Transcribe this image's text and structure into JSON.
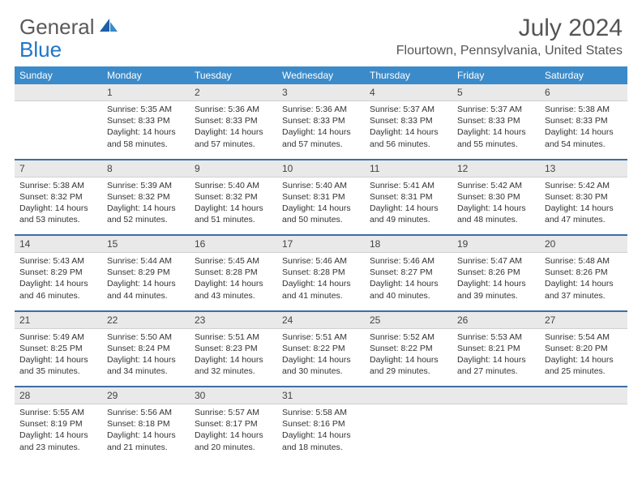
{
  "brand": {
    "part1": "General",
    "part2": "Blue"
  },
  "title": "July 2024",
  "location": "Flourtown, Pennsylvania, United States",
  "colors": {
    "header_bg": "#3b8bca",
    "header_text": "#ffffff",
    "daynum_bg": "#e9e9e9",
    "row_divider": "#3b6fa5",
    "logo_blue": "#2176c7",
    "logo_gray": "#5a5a5a"
  },
  "day_names": [
    "Sunday",
    "Monday",
    "Tuesday",
    "Wednesday",
    "Thursday",
    "Friday",
    "Saturday"
  ],
  "weeks": [
    {
      "nums": [
        "",
        "1",
        "2",
        "3",
        "4",
        "5",
        "6"
      ],
      "cells": [
        null,
        {
          "sr": "Sunrise: 5:35 AM",
          "ss": "Sunset: 8:33 PM",
          "dl": "Daylight: 14 hours and 58 minutes."
        },
        {
          "sr": "Sunrise: 5:36 AM",
          "ss": "Sunset: 8:33 PM",
          "dl": "Daylight: 14 hours and 57 minutes."
        },
        {
          "sr": "Sunrise: 5:36 AM",
          "ss": "Sunset: 8:33 PM",
          "dl": "Daylight: 14 hours and 57 minutes."
        },
        {
          "sr": "Sunrise: 5:37 AM",
          "ss": "Sunset: 8:33 PM",
          "dl": "Daylight: 14 hours and 56 minutes."
        },
        {
          "sr": "Sunrise: 5:37 AM",
          "ss": "Sunset: 8:33 PM",
          "dl": "Daylight: 14 hours and 55 minutes."
        },
        {
          "sr": "Sunrise: 5:38 AM",
          "ss": "Sunset: 8:33 PM",
          "dl": "Daylight: 14 hours and 54 minutes."
        }
      ]
    },
    {
      "nums": [
        "7",
        "8",
        "9",
        "10",
        "11",
        "12",
        "13"
      ],
      "cells": [
        {
          "sr": "Sunrise: 5:38 AM",
          "ss": "Sunset: 8:32 PM",
          "dl": "Daylight: 14 hours and 53 minutes."
        },
        {
          "sr": "Sunrise: 5:39 AM",
          "ss": "Sunset: 8:32 PM",
          "dl": "Daylight: 14 hours and 52 minutes."
        },
        {
          "sr": "Sunrise: 5:40 AM",
          "ss": "Sunset: 8:32 PM",
          "dl": "Daylight: 14 hours and 51 minutes."
        },
        {
          "sr": "Sunrise: 5:40 AM",
          "ss": "Sunset: 8:31 PM",
          "dl": "Daylight: 14 hours and 50 minutes."
        },
        {
          "sr": "Sunrise: 5:41 AM",
          "ss": "Sunset: 8:31 PM",
          "dl": "Daylight: 14 hours and 49 minutes."
        },
        {
          "sr": "Sunrise: 5:42 AM",
          "ss": "Sunset: 8:30 PM",
          "dl": "Daylight: 14 hours and 48 minutes."
        },
        {
          "sr": "Sunrise: 5:42 AM",
          "ss": "Sunset: 8:30 PM",
          "dl": "Daylight: 14 hours and 47 minutes."
        }
      ]
    },
    {
      "nums": [
        "14",
        "15",
        "16",
        "17",
        "18",
        "19",
        "20"
      ],
      "cells": [
        {
          "sr": "Sunrise: 5:43 AM",
          "ss": "Sunset: 8:29 PM",
          "dl": "Daylight: 14 hours and 46 minutes."
        },
        {
          "sr": "Sunrise: 5:44 AM",
          "ss": "Sunset: 8:29 PM",
          "dl": "Daylight: 14 hours and 44 minutes."
        },
        {
          "sr": "Sunrise: 5:45 AM",
          "ss": "Sunset: 8:28 PM",
          "dl": "Daylight: 14 hours and 43 minutes."
        },
        {
          "sr": "Sunrise: 5:46 AM",
          "ss": "Sunset: 8:28 PM",
          "dl": "Daylight: 14 hours and 41 minutes."
        },
        {
          "sr": "Sunrise: 5:46 AM",
          "ss": "Sunset: 8:27 PM",
          "dl": "Daylight: 14 hours and 40 minutes."
        },
        {
          "sr": "Sunrise: 5:47 AM",
          "ss": "Sunset: 8:26 PM",
          "dl": "Daylight: 14 hours and 39 minutes."
        },
        {
          "sr": "Sunrise: 5:48 AM",
          "ss": "Sunset: 8:26 PM",
          "dl": "Daylight: 14 hours and 37 minutes."
        }
      ]
    },
    {
      "nums": [
        "21",
        "22",
        "23",
        "24",
        "25",
        "26",
        "27"
      ],
      "cells": [
        {
          "sr": "Sunrise: 5:49 AM",
          "ss": "Sunset: 8:25 PM",
          "dl": "Daylight: 14 hours and 35 minutes."
        },
        {
          "sr": "Sunrise: 5:50 AM",
          "ss": "Sunset: 8:24 PM",
          "dl": "Daylight: 14 hours and 34 minutes."
        },
        {
          "sr": "Sunrise: 5:51 AM",
          "ss": "Sunset: 8:23 PM",
          "dl": "Daylight: 14 hours and 32 minutes."
        },
        {
          "sr": "Sunrise: 5:51 AM",
          "ss": "Sunset: 8:22 PM",
          "dl": "Daylight: 14 hours and 30 minutes."
        },
        {
          "sr": "Sunrise: 5:52 AM",
          "ss": "Sunset: 8:22 PM",
          "dl": "Daylight: 14 hours and 29 minutes."
        },
        {
          "sr": "Sunrise: 5:53 AM",
          "ss": "Sunset: 8:21 PM",
          "dl": "Daylight: 14 hours and 27 minutes."
        },
        {
          "sr": "Sunrise: 5:54 AM",
          "ss": "Sunset: 8:20 PM",
          "dl": "Daylight: 14 hours and 25 minutes."
        }
      ]
    },
    {
      "nums": [
        "28",
        "29",
        "30",
        "31",
        "",
        "",
        ""
      ],
      "cells": [
        {
          "sr": "Sunrise: 5:55 AM",
          "ss": "Sunset: 8:19 PM",
          "dl": "Daylight: 14 hours and 23 minutes."
        },
        {
          "sr": "Sunrise: 5:56 AM",
          "ss": "Sunset: 8:18 PM",
          "dl": "Daylight: 14 hours and 21 minutes."
        },
        {
          "sr": "Sunrise: 5:57 AM",
          "ss": "Sunset: 8:17 PM",
          "dl": "Daylight: 14 hours and 20 minutes."
        },
        {
          "sr": "Sunrise: 5:58 AM",
          "ss": "Sunset: 8:16 PM",
          "dl": "Daylight: 14 hours and 18 minutes."
        },
        null,
        null,
        null
      ]
    }
  ]
}
